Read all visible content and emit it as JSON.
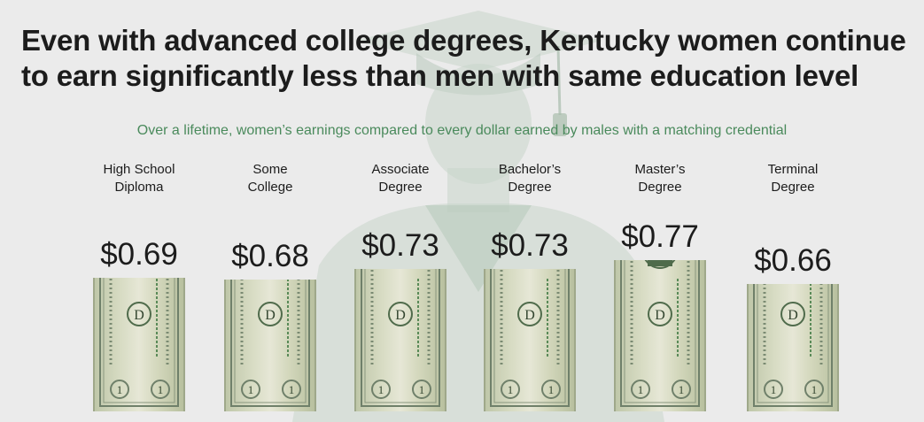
{
  "title": {
    "line1": "Even with advanced college degrees, Kentucky women continue",
    "line2": "to earn significantly less than men with same education level"
  },
  "subtitle": "Over a lifetime, women’s earnings compared to every dollar earned by males with a matching credential",
  "colors": {
    "background": "#ebebeb",
    "subtitle": "#4a8a5c",
    "graduate_silhouette": "#c9d6cb",
    "bill_green": "#4f6b4b"
  },
  "chart_data": {
    "type": "bar",
    "title": "Even with advanced college degrees, Kentucky women continue to earn significantly less than men with same education level",
    "subtitle": "Over a lifetime, women’s earnings compared to every dollar earned by males with a matching credential",
    "categories": [
      [
        "High School",
        "Diploma"
      ],
      [
        "Some",
        "College"
      ],
      [
        "Associate",
        "Degree"
      ],
      [
        "Bachelor’s",
        "Degree"
      ],
      [
        "Master’s",
        "Degree"
      ],
      [
        "Terminal",
        "Degree"
      ]
    ],
    "values": [
      0.69,
      0.68,
      0.73,
      0.73,
      0.77,
      0.66
    ],
    "value_labels": [
      "$0.69",
      "$0.68",
      "$0.73",
      "$0.73",
      "$0.77",
      "$0.66"
    ],
    "bar_style": "dollar-bill",
    "xlabel": "",
    "ylabel": "",
    "grid": false
  }
}
